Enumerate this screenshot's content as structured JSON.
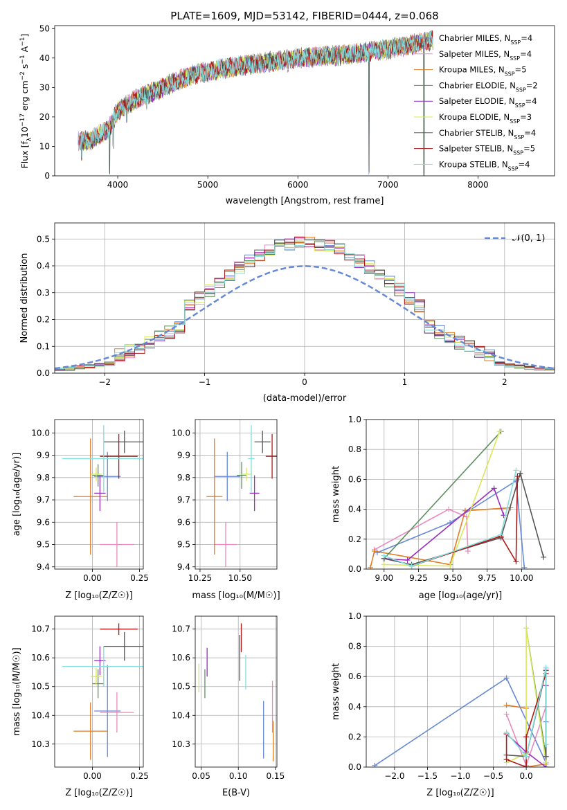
{
  "colors": {
    "chabrier_miles": "#6689d6",
    "salpeter_miles": "#e88abf",
    "kroupa_miles": "#e07d27",
    "chabrier_elodie": "#5e8f5e",
    "salpeter_elodie": "#9a2fbf",
    "kroupa_elodie": "#d8e85a",
    "chabrier_stelib": "#555555",
    "salpeter_stelib": "#b01818",
    "kroupa_stelib": "#84dede",
    "gaussian": "#6689d6"
  },
  "chart_data": [
    {
      "id": "spectrum",
      "type": "line",
      "title": "PLATE=1609, MJD=53142, FIBERID=0444, z=0.068",
      "xlabel": "wavelength [Angstrom, rest frame]",
      "ylabel_parts": [
        "Flux [f",
        "λ",
        "10",
        "−17",
        " erg cm",
        "−2",
        " s",
        "−1",
        " A",
        "−1",
        "]"
      ],
      "xlim": [
        3300,
        8850
      ],
      "ylim": [
        0,
        51
      ],
      "xticks": [
        4000,
        5000,
        6000,
        7000,
        8000
      ],
      "yticks": [
        0,
        10,
        20,
        30,
        40,
        50
      ],
      "x_range": [
        3560,
        7500
      ],
      "envelope": [
        {
          "x": 3560,
          "y": 12
        },
        {
          "x": 3700,
          "y": 12
        },
        {
          "x": 3900,
          "y": 16
        },
        {
          "x": 4000,
          "y": 22
        },
        {
          "x": 4200,
          "y": 26
        },
        {
          "x": 4500,
          "y": 30
        },
        {
          "x": 4800,
          "y": 34
        },
        {
          "x": 5100,
          "y": 36
        },
        {
          "x": 5500,
          "y": 38
        },
        {
          "x": 6000,
          "y": 40
        },
        {
          "x": 6500,
          "y": 41
        },
        {
          "x": 7000,
          "y": 43
        },
        {
          "x": 7500,
          "y": 46
        }
      ],
      "dips": [
        {
          "x": 3600,
          "y": 5
        },
        {
          "x": 3910,
          "y": 0
        },
        {
          "x": 3950,
          "y": 9
        },
        {
          "x": 4100,
          "y": 18
        },
        {
          "x": 4320,
          "y": 22
        },
        {
          "x": 5890,
          "y": 35
        },
        {
          "x": 6790,
          "y": 0
        },
        {
          "x": 7400,
          "y": 0
        }
      ],
      "legend": [
        {
          "name": "Chabrier MILES",
          "nssp": "4",
          "color": "#6689d6"
        },
        {
          "name": "Salpeter MILES",
          "nssp": "4",
          "color": "#e88abf"
        },
        {
          "name": "Kroupa MILES",
          "nssp": "5",
          "color": "#e07d27"
        },
        {
          "name": "Chabrier ELODIE",
          "nssp": "2",
          "color": "#5e8f5e"
        },
        {
          "name": "Salpeter ELODIE",
          "nssp": "4",
          "color": "#9a2fbf"
        },
        {
          "name": "Kroupa ELODIE",
          "nssp": "3",
          "color": "#d8e85a"
        },
        {
          "name": "Chabrier STELIB",
          "nssp": "4",
          "color": "#555555"
        },
        {
          "name": "Salpeter STELIB",
          "nssp": "5",
          "color": "#b01818"
        },
        {
          "name": "Kroupa STELIB",
          "nssp": "4",
          "color": "#84dede"
        }
      ],
      "legend_sub": "SSP",
      "legend_prefix": "N"
    },
    {
      "id": "residuals",
      "type": "histogram",
      "xlabel": "(data-model)/error",
      "ylabel": "Normed distribution",
      "xlim": [
        -2.5,
        2.5
      ],
      "ylim": [
        0,
        0.56
      ],
      "xticks": [
        -2,
        -1,
        0,
        1,
        2
      ],
      "xticklabels": [
        "−2",
        "−1",
        "0",
        "1",
        "2"
      ],
      "yticks": [
        0.0,
        0.1,
        0.2,
        0.3,
        0.4,
        0.5
      ],
      "yticklabels": [
        "0.0",
        "0.1",
        "0.2",
        "0.3",
        "0.4",
        "0.5"
      ],
      "bin_width": 0.1,
      "gaussian_label": "𝒩(0, 1)",
      "gaussian": {
        "mean": 0,
        "sigma": 1
      }
    },
    {
      "id": "age_vs_Z",
      "type": "scatter",
      "xlabel": "Z [log₁₀(Z/Z☉)]",
      "ylabel": "age  [log₁₀(age/yr)]",
      "xlim": [
        -0.2,
        0.27
      ],
      "ylim": [
        9.39,
        10.06
      ],
      "xticks": [
        0.0,
        0.25
      ],
      "xticklabels": [
        "0.00",
        "0.25"
      ],
      "yticks": [
        9.4,
        9.5,
        9.6,
        9.7,
        9.8,
        9.9,
        10.0
      ],
      "yticklabels": [
        "9.4",
        "9.5",
        "9.6",
        "9.7",
        "9.8",
        "9.9",
        "10.0"
      ],
      "points": [
        {
          "color": "#6689d6",
          "x": 0.08,
          "xerr": 0.07,
          "y": 9.805,
          "yerr": 0.11
        },
        {
          "color": "#e88abf",
          "x": 0.13,
          "xerr": 0.09,
          "y": 9.5,
          "yerr": 0.1
        },
        {
          "color": "#e07d27",
          "x": -0.01,
          "xerr": 0.09,
          "y": 9.715,
          "yerr": 0.26
        },
        {
          "color": "#5e8f5e",
          "x": 0.03,
          "xerr": 0.03,
          "y": 9.81,
          "yerr": 0.05
        },
        {
          "color": "#9a2fbf",
          "x": 0.04,
          "xerr": 0.03,
          "y": 9.73,
          "yerr": 0.08
        },
        {
          "color": "#d8e85a",
          "x": 0.02,
          "xerr": 0.03,
          "y": 9.815,
          "yerr": 0.03
        },
        {
          "color": "#555555",
          "x": 0.17,
          "xerr": 0.11,
          "y": 9.96,
          "yerr": 0.05
        },
        {
          "color": "#b01818",
          "x": 0.14,
          "xerr": 0.1,
          "y": 9.895,
          "yerr": 0.1
        },
        {
          "color": "#84dede",
          "x": 0.06,
          "xerr": 0.22,
          "y": 9.885,
          "yerr": 0.15
        }
      ]
    },
    {
      "id": "age_vs_mass",
      "type": "scatter",
      "xlabel": "mass [log₁₀(M/M☉)]",
      "ylabel": "",
      "xlim": [
        10.22,
        10.73
      ],
      "ylim": [
        9.39,
        10.06
      ],
      "xticks": [
        10.25,
        10.5
      ],
      "xticklabels": [
        "10.25",
        "10.50"
      ],
      "yticks": [
        9.4,
        9.5,
        9.6,
        9.7,
        9.8,
        9.9,
        10.0
      ],
      "yticklabels": [
        "9.4",
        "9.5",
        "9.6",
        "9.7",
        "9.8",
        "9.9",
        "10.0"
      ],
      "points": [
        {
          "color": "#6689d6",
          "x": 10.42,
          "xerr": 0.08,
          "y": 9.805,
          "yerr": 0.11
        },
        {
          "color": "#e88abf",
          "x": 10.41,
          "xerr": 0.07,
          "y": 9.5,
          "yerr": 0.1
        },
        {
          "color": "#e07d27",
          "x": 10.34,
          "xerr": 0.05,
          "y": 9.715,
          "yerr": 0.26
        },
        {
          "color": "#5e8f5e",
          "x": 10.51,
          "xerr": 0.03,
          "y": 9.81,
          "yerr": 0.06
        },
        {
          "color": "#9a2fbf",
          "x": 10.59,
          "xerr": 0.03,
          "y": 9.73,
          "yerr": 0.08
        },
        {
          "color": "#d8e85a",
          "x": 10.54,
          "xerr": 0.03,
          "y": 9.815,
          "yerr": 0.03
        },
        {
          "color": "#555555",
          "x": 10.64,
          "xerr": 0.05,
          "y": 9.96,
          "yerr": 0.05
        },
        {
          "color": "#b01818",
          "x": 10.7,
          "xerr": 0.04,
          "y": 9.895,
          "yerr": 0.1
        },
        {
          "color": "#84dede",
          "x": 10.57,
          "xerr": 0.02,
          "y": 9.885,
          "yerr": 0.15
        }
      ]
    },
    {
      "id": "weight_vs_age",
      "type": "line",
      "xlabel": "age  [log₁₀(age/yr)]",
      "ylabel": "mass weight",
      "xlim": [
        8.87,
        10.24
      ],
      "ylim": [
        0,
        1
      ],
      "xticks": [
        9.0,
        9.25,
        9.5,
        9.75,
        10.0
      ],
      "xticklabels": [
        "9.00",
        "9.25",
        "9.50",
        "9.75",
        "10.00"
      ],
      "yticks": [
        0,
        0.2,
        0.4,
        0.6,
        0.8,
        1.0
      ],
      "yticklabels": [
        "0.0",
        "0.2",
        "0.4",
        "0.6",
        "0.8",
        "1.0"
      ],
      "series": [
        {
          "color": "#6689d6",
          "points": [
            [
              8.95,
              0.11
            ],
            [
              9.48,
              0.31
            ],
            [
              9.96,
              0.59
            ],
            [
              10.02,
              0.01
            ]
          ]
        },
        {
          "color": "#e88abf",
          "points": [
            [
              8.93,
              0.13
            ],
            [
              9.47,
              0.4
            ],
            [
              9.6,
              0.35
            ],
            [
              9.61,
              0.12
            ]
          ]
        },
        {
          "color": "#e07d27",
          "points": [
            [
              8.9,
              0.01
            ],
            [
              8.93,
              0.12
            ],
            [
              9.48,
              0.03
            ],
            [
              9.59,
              0.39
            ],
            [
              9.92,
              0.41
            ]
          ]
        },
        {
          "color": "#5e8f5e",
          "points": [
            [
              9.0,
              0.07
            ],
            [
              9.85,
              0.92
            ]
          ]
        },
        {
          "color": "#9a2fbf",
          "points": [
            [
              9.0,
              0.07
            ],
            [
              9.17,
              0.06
            ],
            [
              9.8,
              0.54
            ],
            [
              9.87,
              0.36
            ]
          ]
        },
        {
          "color": "#d8e85a",
          "points": [
            [
              9.0,
              0.03
            ],
            [
              9.48,
              0.02
            ],
            [
              9.84,
              0.92
            ]
          ]
        },
        {
          "color": "#555555",
          "points": [
            [
              9.0,
              0.07
            ],
            [
              9.2,
              0.03
            ],
            [
              9.85,
              0.21
            ],
            [
              9.99,
              0.64
            ],
            [
              10.16,
              0.08
            ]
          ]
        },
        {
          "color": "#b01818",
          "points": [
            [
              9.2,
              0.02
            ],
            [
              9.85,
              0.22
            ],
            [
              9.96,
              0.05
            ],
            [
              9.97,
              0.62
            ]
          ]
        },
        {
          "color": "#84dede",
          "points": [
            [
              9.0,
              0.09
            ],
            [
              9.2,
              0.02
            ],
            [
              9.85,
              0.23
            ],
            [
              9.96,
              0.66
            ]
          ]
        }
      ]
    },
    {
      "id": "mass_vs_Z",
      "type": "scatter",
      "xlabel": "Z [log₁₀(Z/Z☉)]",
      "ylabel": "mass [log₁₀(M/M☉)]",
      "xlim": [
        -0.2,
        0.27
      ],
      "ylim": [
        10.22,
        10.745
      ],
      "xticks": [
        0.0,
        0.25
      ],
      "xticklabels": [
        "0.00",
        "0.25"
      ],
      "yticks": [
        10.3,
        10.4,
        10.5,
        10.6,
        10.7
      ],
      "yticklabels": [
        "10.3",
        "10.4",
        "10.5",
        "10.6",
        "10.7"
      ],
      "points": [
        {
          "color": "#6689d6",
          "x": 0.08,
          "xerr": 0.07,
          "y": 10.415,
          "yerr": 0.16
        },
        {
          "color": "#e88abf",
          "x": 0.13,
          "xerr": 0.09,
          "y": 10.41,
          "yerr": 0.07
        },
        {
          "color": "#e07d27",
          "x": -0.01,
          "xerr": 0.09,
          "y": 10.345,
          "yerr": 0.1
        },
        {
          "color": "#5e8f5e",
          "x": 0.03,
          "xerr": 0.03,
          "y": 10.51,
          "yerr": 0.05
        },
        {
          "color": "#9a2fbf",
          "x": 0.04,
          "xerr": 0.03,
          "y": 10.59,
          "yerr": 0.05
        },
        {
          "color": "#d8e85a",
          "x": 0.02,
          "xerr": 0.03,
          "y": 10.535,
          "yerr": 0.03
        },
        {
          "color": "#555555",
          "x": 0.17,
          "xerr": 0.11,
          "y": 10.64,
          "yerr": 0.05
        },
        {
          "color": "#b01818",
          "x": 0.14,
          "xerr": 0.1,
          "y": 10.7,
          "yerr": 0.02
        },
        {
          "color": "#84dede",
          "x": 0.06,
          "xerr": 0.22,
          "y": 10.57,
          "yerr": 0.07
        }
      ]
    },
    {
      "id": "mass_vs_EBV",
      "type": "scatter",
      "xlabel": "E(B-V)",
      "ylabel": "",
      "xlim": [
        0.042,
        0.152
      ],
      "ylim": [
        10.22,
        10.745
      ],
      "xticks": [
        0.05,
        0.1,
        0.15
      ],
      "xticklabels": [
        "0.05",
        "0.10",
        "0.15"
      ],
      "yticks": [
        10.3,
        10.4,
        10.5,
        10.6,
        10.7
      ],
      "yticklabels": [
        "10.3",
        "10.4",
        "10.5",
        "10.6",
        "10.7"
      ],
      "points": [
        {
          "color": "#6689d6",
          "x": 0.134,
          "y": 10.35,
          "yerr": 0.1
        },
        {
          "color": "#e88abf",
          "x": 0.146,
          "y": 10.43,
          "yerr": 0.09
        },
        {
          "color": "#e07d27",
          "x": 0.147,
          "y": 10.31,
          "yerr": 0.07
        },
        {
          "color": "#5e8f5e",
          "x": 0.055,
          "y": 10.51,
          "yerr": 0.05
        },
        {
          "color": "#9a2fbf",
          "x": 0.058,
          "y": 10.585,
          "yerr": 0.05
        },
        {
          "color": "#d8e85a",
          "x": 0.047,
          "y": 10.53,
          "yerr": 0.05
        },
        {
          "color": "#555555",
          "x": 0.102,
          "y": 10.6,
          "yerr": 0.08
        },
        {
          "color": "#b01818",
          "x": 0.104,
          "y": 10.67,
          "yerr": 0.05
        },
        {
          "color": "#84dede",
          "x": 0.11,
          "y": 10.55,
          "yerr": 0.06
        }
      ]
    },
    {
      "id": "weight_vs_Z",
      "type": "line",
      "xlabel": "Z [log₁₀(Z/Z☉)]",
      "ylabel": "mass weight",
      "xlim": [
        -2.43,
        0.43
      ],
      "ylim": [
        0,
        1
      ],
      "xticks": [
        -2.0,
        -1.5,
        -1.0,
        -0.5,
        0.0
      ],
      "xticklabels": [
        "−2.0",
        "−1.5",
        "−1.0",
        "−0.5",
        "0.0"
      ],
      "yticks": [
        0,
        0.2,
        0.4,
        0.6,
        0.8,
        1.0
      ],
      "yticklabels": [
        "0.0",
        "0.2",
        "0.4",
        "0.6",
        "0.8",
        "1.0"
      ],
      "series": [
        {
          "color": "#6689d6",
          "points": [
            [
              -2.3,
              0.01
            ],
            [
              -0.3,
              0.59
            ],
            [
              0.3,
              0.03
            ],
            [
              0.3,
              0.3
            ]
          ]
        },
        {
          "color": "#e88abf",
          "points": [
            [
              -0.3,
              0.35
            ],
            [
              0.0,
              0.01
            ],
            [
              0.3,
              0.4
            ],
            [
              0.3,
              0.65
            ]
          ]
        },
        {
          "color": "#e07d27",
          "points": [
            [
              -0.3,
              0.41
            ],
            [
              0.0,
              0.39
            ],
            [
              0.0,
              0.0
            ],
            [
              0.3,
              0.02
            ]
          ]
        },
        {
          "color": "#5e8f5e",
          "points": [
            [
              0.0,
              0.92
            ],
            [
              0.3,
              0.07
            ]
          ]
        },
        {
          "color": "#9a2fbf",
          "points": [
            [
              -0.3,
              0.22
            ],
            [
              0.0,
              0.1
            ],
            [
              0.3,
              0.0
            ],
            [
              0.3,
              0.54
            ]
          ]
        },
        {
          "color": "#d8e85a",
          "points": [
            [
              -0.3,
              0.03
            ],
            [
              0.0,
              0.09
            ],
            [
              0.0,
              0.92
            ],
            [
              0.3,
              0.03
            ]
          ]
        },
        {
          "color": "#555555",
          "points": [
            [
              -0.3,
              0.08
            ],
            [
              0.0,
              0.07
            ],
            [
              0.3,
              0.64
            ],
            [
              0.3,
              0.07
            ]
          ]
        },
        {
          "color": "#b01818",
          "points": [
            [
              -0.3,
              0.22
            ],
            [
              -0.3,
              0.05
            ],
            [
              0.0,
              0.0
            ],
            [
              0.0,
              0.2
            ],
            [
              0.3,
              0.62
            ]
          ]
        },
        {
          "color": "#84dede",
          "points": [
            [
              -0.3,
              0.23
            ],
            [
              0.0,
              0.07
            ],
            [
              0.3,
              0.66
            ],
            [
              0.3,
              0.15
            ]
          ]
        }
      ]
    }
  ]
}
